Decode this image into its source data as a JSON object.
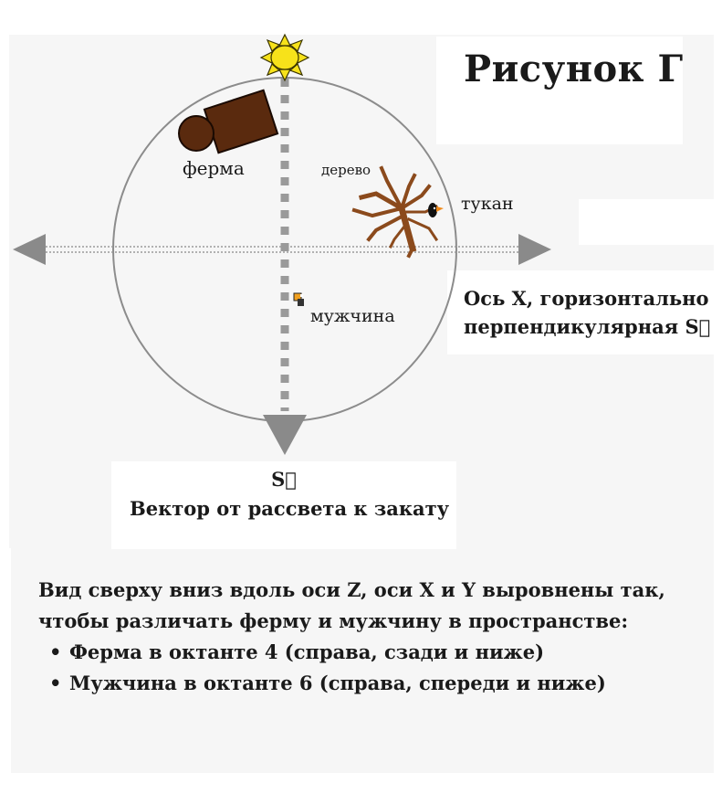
{
  "title": "Рисунок Г",
  "labels": {
    "farm": "ферма",
    "tree": "дерево",
    "toucan": "тукан",
    "man": "мужчина",
    "x_axis_line1": "Ось X, горизонтально",
    "x_axis_line2": "перпендикулярная S⃗",
    "s_vector": "S⃗",
    "vector_caption": "Вектор от рассвета к закату"
  },
  "caption": {
    "line1": "Вид сверху вниз вдоль оси Z, оси X и Y выровнены так,",
    "line2": "чтобы различать ферму и мужчину в пространстве:",
    "bullets": [
      "Ферма в октанте 4 (справа, сзади и ниже)",
      "Мужчина в октанте 6 (справа, спереди и ниже)"
    ]
  },
  "colors": {
    "circle": "#8c8c8c",
    "axis": "#9a9a9a",
    "farm": "#5a2a0e",
    "tree": "#8b4a1c",
    "sun": "#f7e21a",
    "text": "#1a1a1a"
  },
  "icons": [
    "sun-icon",
    "farm-icon",
    "tree-icon",
    "toucan-icon",
    "man-icon"
  ]
}
